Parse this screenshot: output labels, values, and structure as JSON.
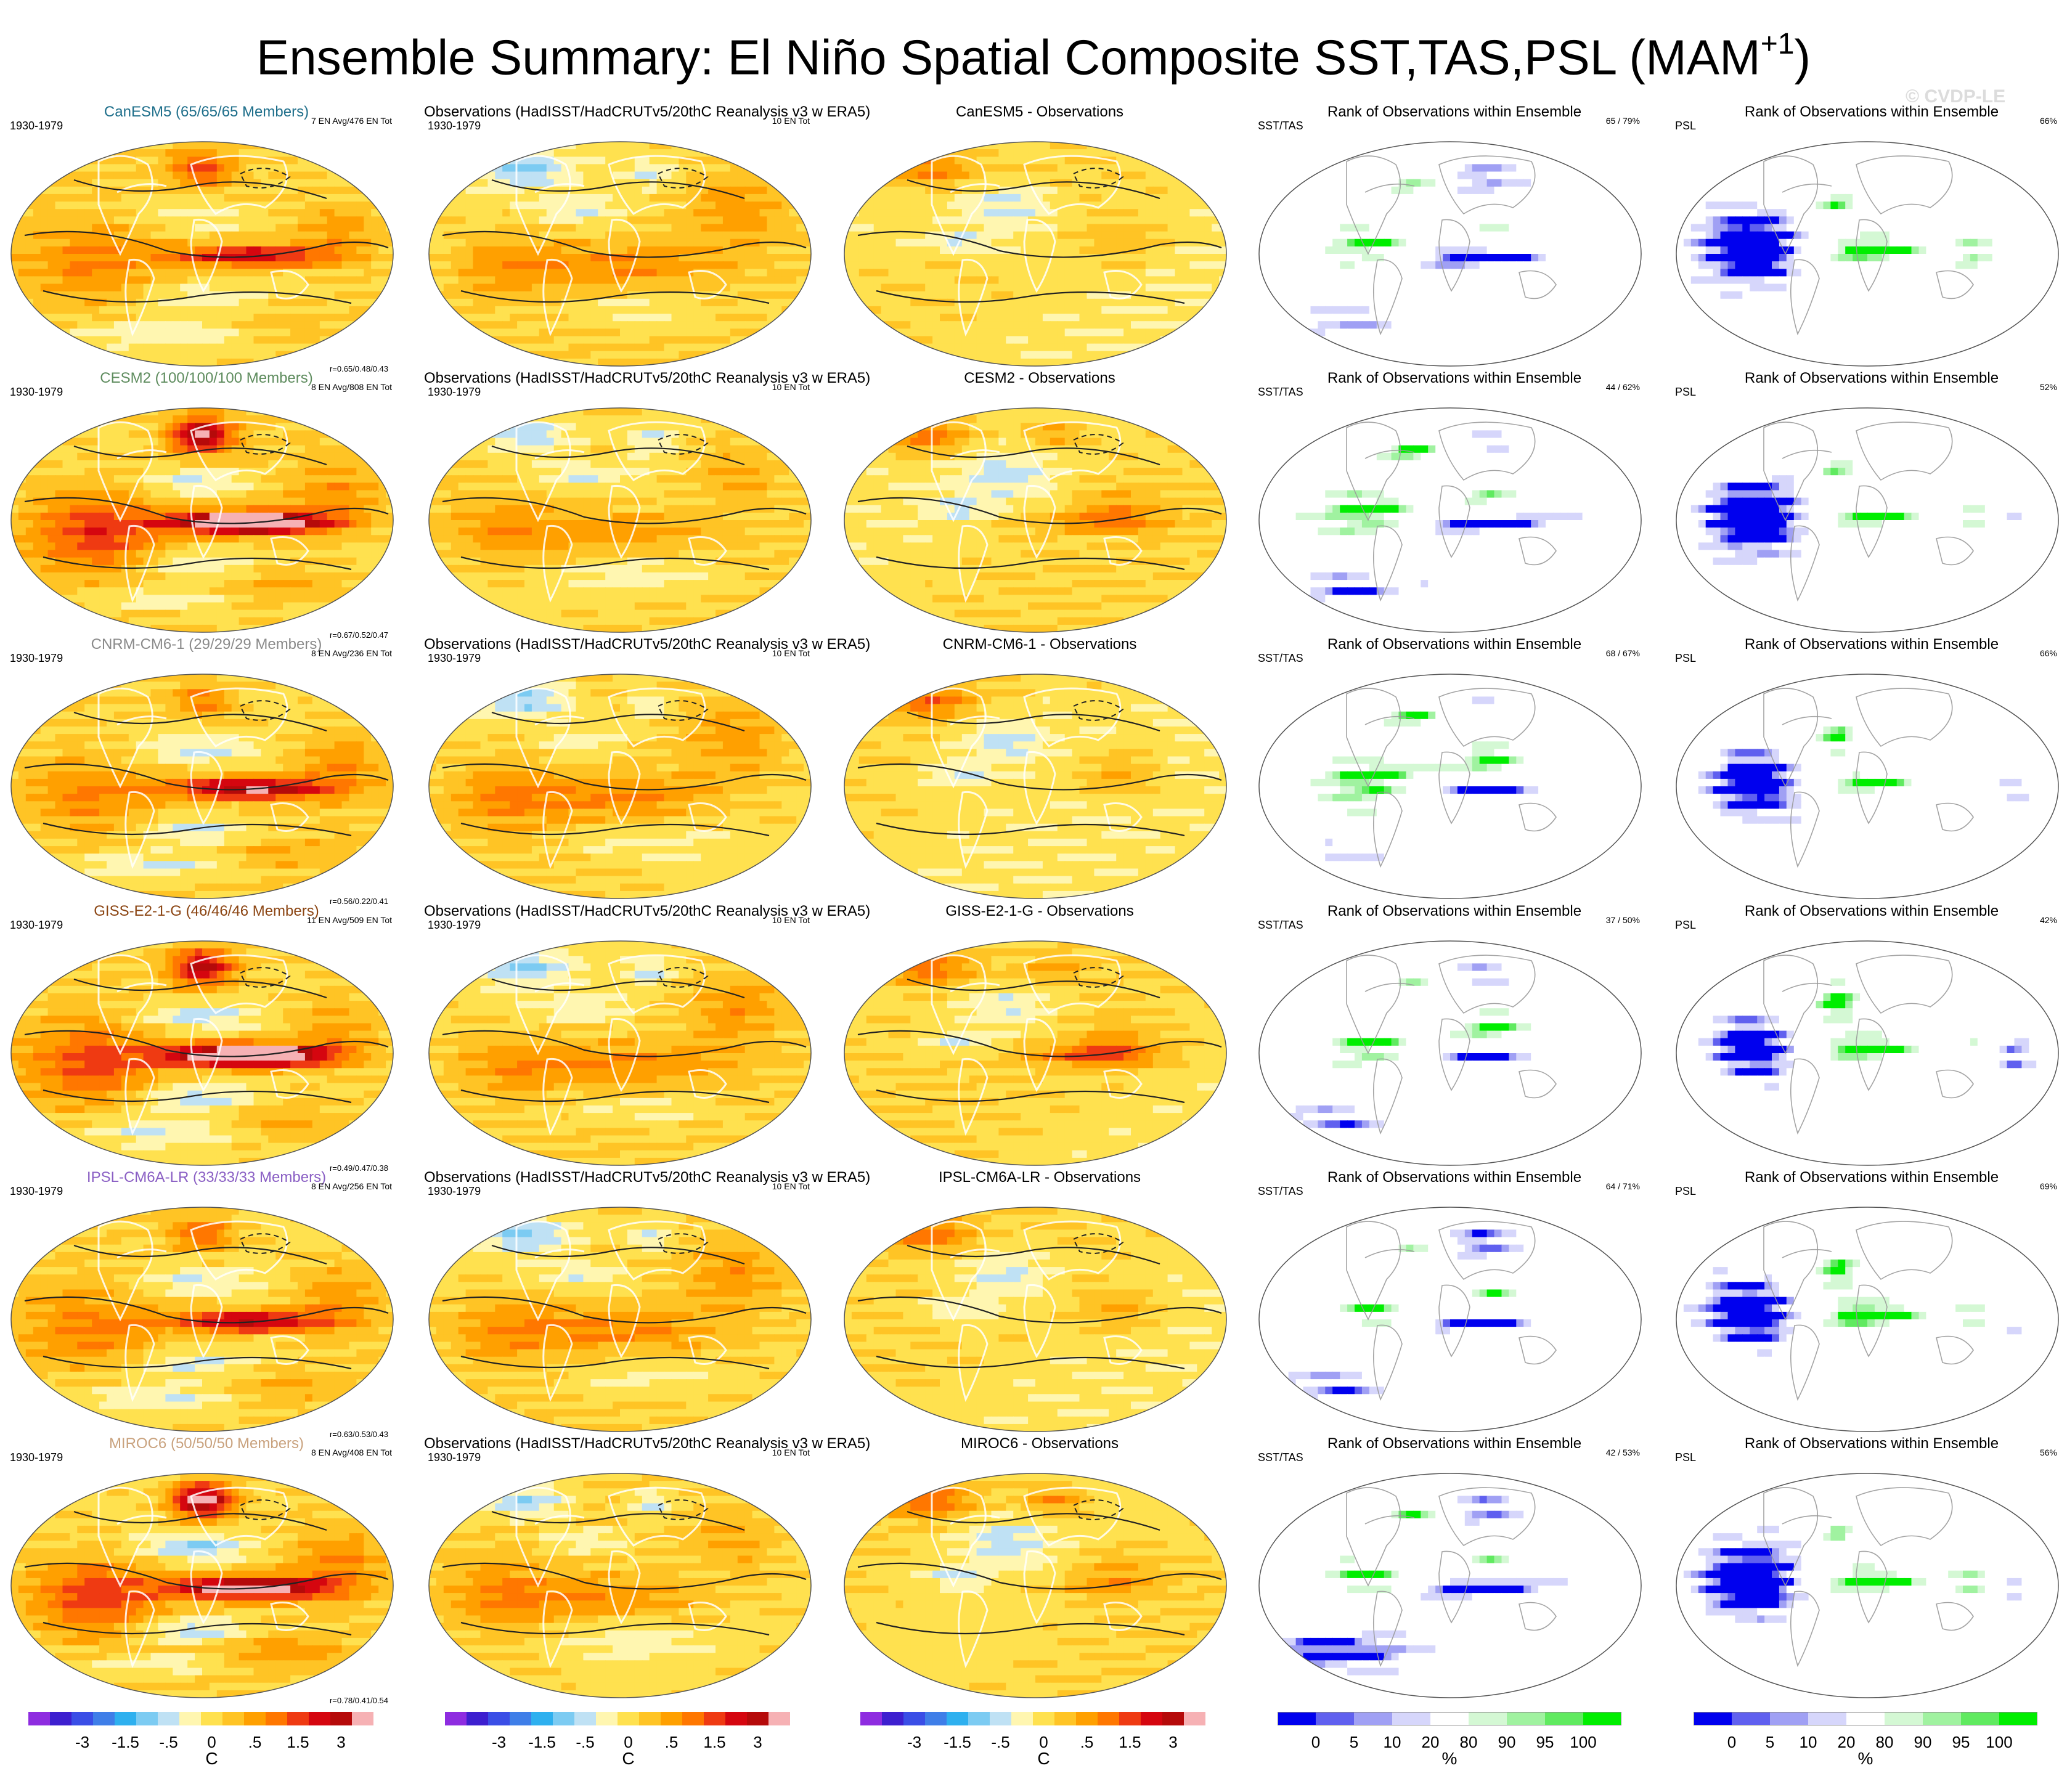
{
  "title": "Ensemble Summary: El Niño Spatial Composite SST,TAS,PSL (MAM",
  "title_sup": "+1",
  "watermark": "© CVDP-LE",
  "colors": {
    "nan": "#ffffff"
  },
  "chart_data": {
    "type": "map-grid",
    "obs_title": "Observations (HadISST/HadCRUTv5/20thC Reanalysis v3 w ERA5)",
    "rank_title": "Rank of Observations within Ensemble",
    "period": "1930-1979",
    "obs_events": "10 EN Tot",
    "rank_sst_label": "SST/TAS",
    "rank_psl_label": "PSL",
    "rows": [
      {
        "model": "CanESM5",
        "members": "CanESM5 (65/65/65 Members)",
        "model_color": "#1f6f8b",
        "events": "7 EN Avg/476 EN Tot",
        "corr": "r=0.65/0.48/0.43",
        "diff_title": "CanESM5 - Observations",
        "rank_sst": "65 / 79%",
        "rank_psl": "66%",
        "w": {
          "en": 0.9,
          "nhl": 0.9,
          "sh": 0.7,
          "ind": 0.8,
          "blue": 0.6
        }
      },
      {
        "model": "CESM2",
        "members": "CESM2 (100/100/100 Members)",
        "model_color": "#5e8c5e",
        "events": "8 EN Avg/808 EN Tot",
        "corr": "r=0.67/0.52/0.47",
        "diff_title": "CESM2 - Observations",
        "rank_sst": "44 / 62%",
        "rank_psl": "52%",
        "w": {
          "en": 1.5,
          "nhl": 1.6,
          "sh": 1.0,
          "ind": 1.3,
          "blue": 1.0
        }
      },
      {
        "model": "CNRM-CM6-1",
        "members": "CNRM-CM6-1 (29/29/29 Members)",
        "model_color": "#8a8a8a",
        "events": "8 EN Avg/236 EN Tot",
        "corr": "r=0.56/0.22/0.41",
        "diff_title": "CNRM-CM6-1 - Observations",
        "rank_sst": "68 / 67%",
        "rank_psl": "66%",
        "w": {
          "en": 1.1,
          "nhl": 0.7,
          "sh": 0.8,
          "ind": 0.9,
          "blue": 0.9
        }
      },
      {
        "model": "GISS-E2-1-G",
        "members": "GISS-E2-1-G (46/46/46 Members)",
        "model_color": "#8b4513",
        "events": "11 EN Avg/509 EN Tot",
        "corr": "r=0.49/0.47/0.38",
        "diff_title": "GISS-E2-1-G - Observations",
        "rank_sst": "37 / 50%",
        "rank_psl": "42%",
        "w": {
          "en": 1.8,
          "nhl": 1.4,
          "sh": 1.1,
          "ind": 1.2,
          "blue": 1.1
        }
      },
      {
        "model": "IPSL-CM6A-LR",
        "members": "IPSL-CM6A-LR (33/33/33 Members)",
        "model_color": "#8a5fc4",
        "events": "8 EN Avg/256 EN Tot",
        "corr": "r=0.63/0.53/0.43",
        "diff_title": "IPSL-CM6A-LR - Observations",
        "rank_sst": "64 / 71%",
        "rank_psl": "69%",
        "w": {
          "en": 1.0,
          "nhl": 0.8,
          "sh": 0.9,
          "ind": 0.9,
          "blue": 0.8
        }
      },
      {
        "model": "MIROC6",
        "members": "MIROC6 (50/50/50 Members)",
        "model_color": "#c9a27e",
        "events": "8 EN Avg/408 EN Tot",
        "corr": "r=0.78/0.41/0.54",
        "diff_title": "MIROC6 - Observations",
        "rank_sst": "42 / 53%",
        "rank_psl": "56%",
        "w": {
          "en": 1.3,
          "nhl": 1.8,
          "sh": 1.2,
          "ind": 1.4,
          "blue": 1.3
        }
      }
    ],
    "anom_colorbar": {
      "unit": "C",
      "tick_labels": [
        "-3",
        "-1.5",
        "-.5",
        "0",
        ".5",
        "1.5",
        "3"
      ],
      "tick_positions": [
        2,
        4,
        6,
        8,
        10,
        12,
        14
      ],
      "colors": [
        "#8e2ce0",
        "#3d1fcf",
        "#3a4ee6",
        "#3f7ee8",
        "#2eb0ef",
        "#7ccbf2",
        "#bfe1f4",
        "#fff6b0",
        "#ffe14f",
        "#ffc425",
        "#ffa000",
        "#ff7700",
        "#ef3a12",
        "#d5060f",
        "#b50a0a",
        "#f6b1b4"
      ]
    },
    "rank_colorbar": {
      "unit": "%",
      "tick_labels": [
        "0",
        "5",
        "10",
        "20",
        "80",
        "90",
        "95",
        "100"
      ],
      "colors": [
        "#0000ee",
        "#6060ef",
        "#a0a0f4",
        "#d6d6fb",
        "#ffffff",
        "#d4f8d4",
        "#a0f2a0",
        "#60ea60",
        "#00ee00"
      ]
    }
  }
}
